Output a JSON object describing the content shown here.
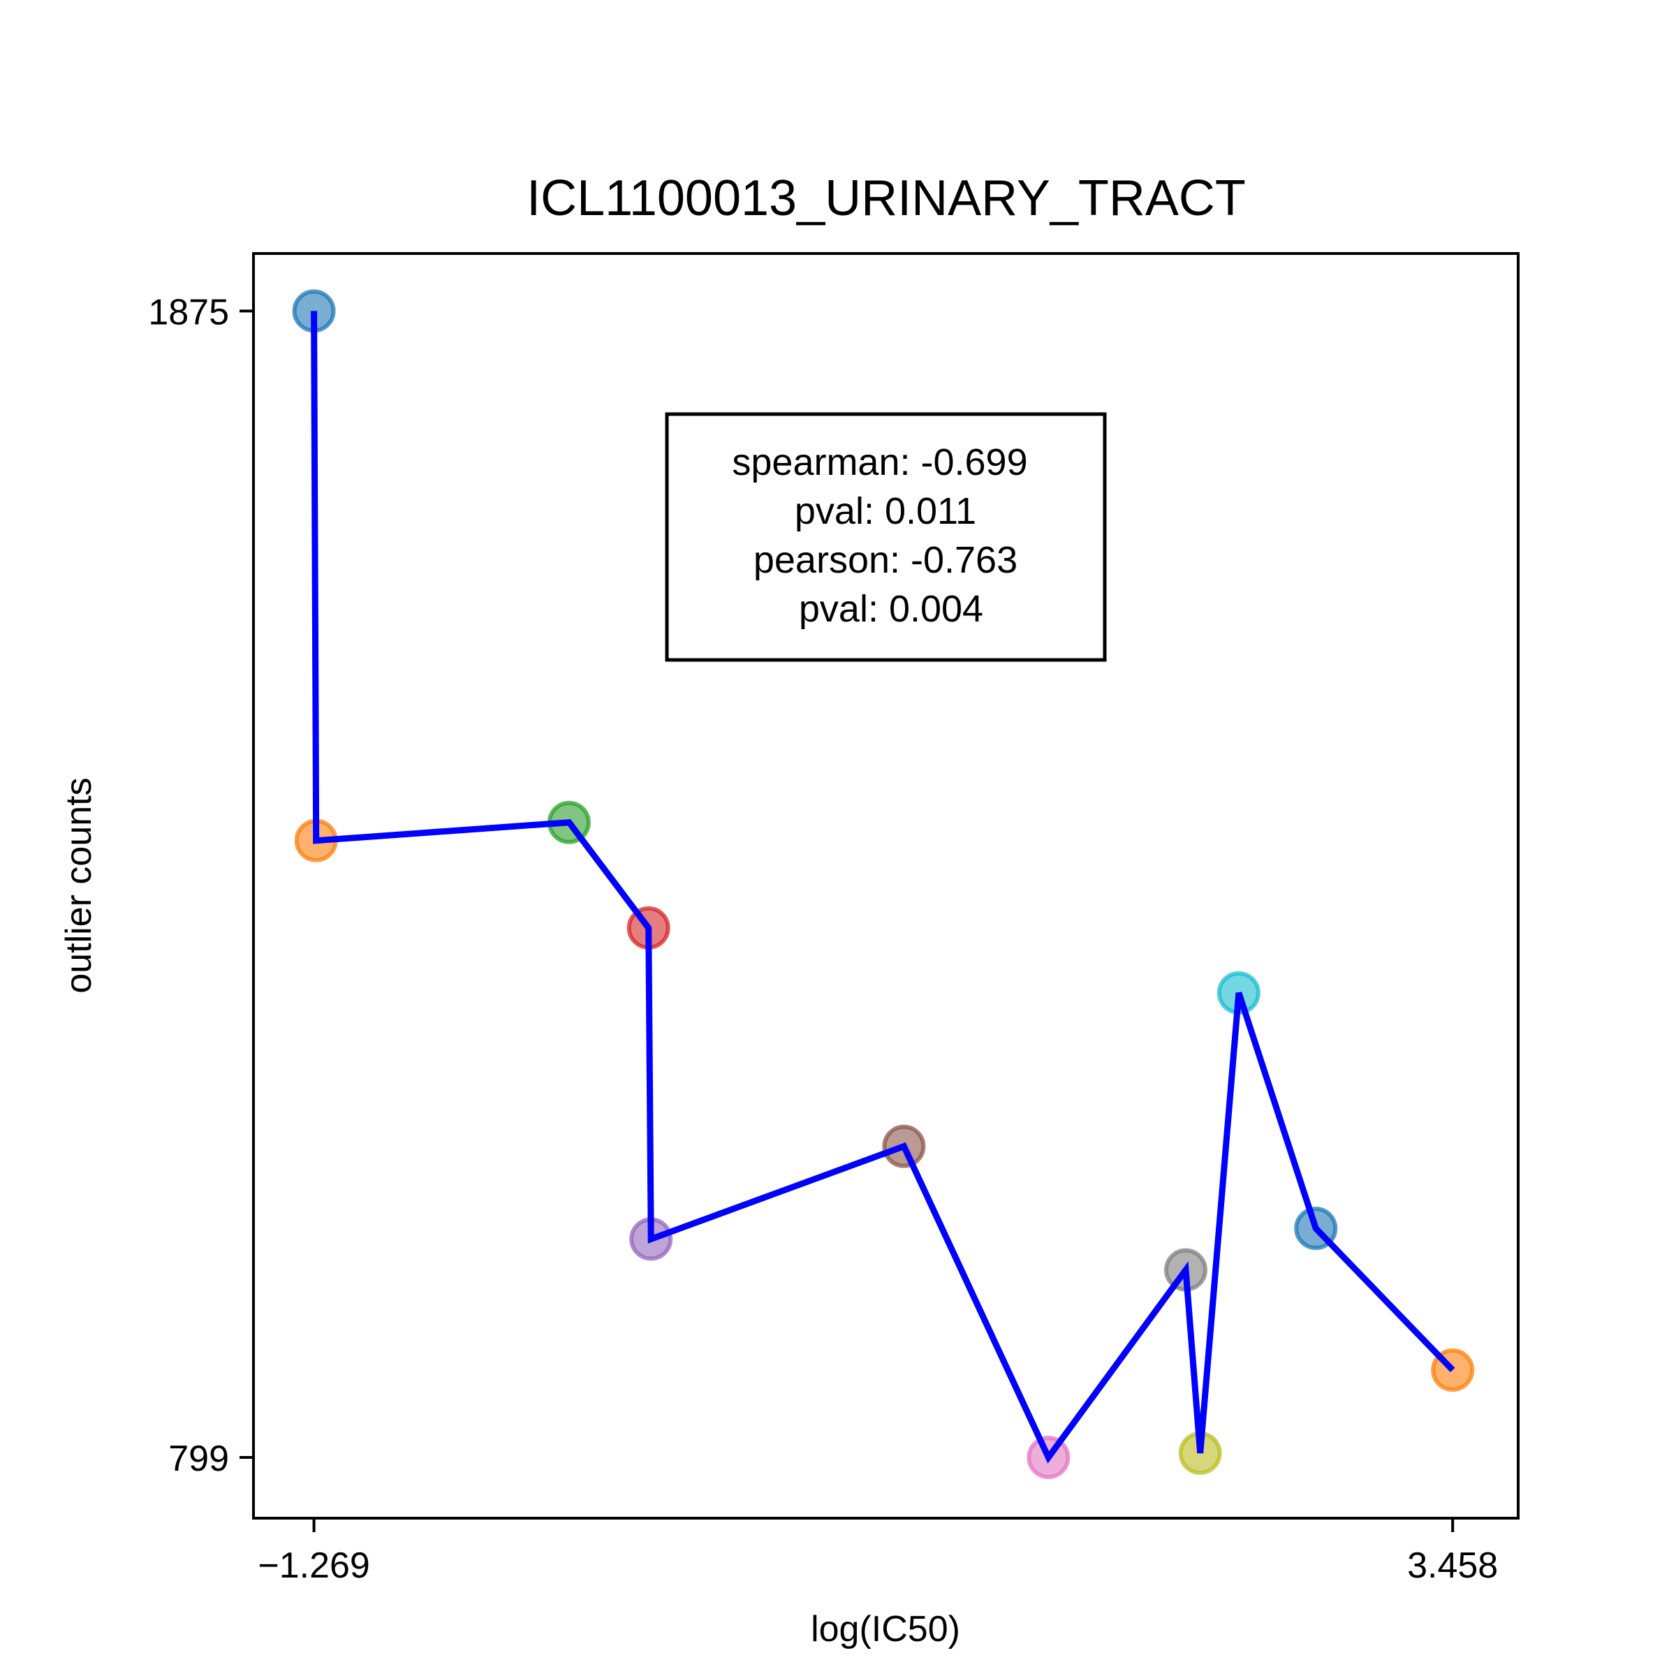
{
  "chart_data": {
    "type": "scatter",
    "title": "ICL1100013_URINARY_TRACT",
    "xlabel": "log(IC50)",
    "ylabel": "outlier counts",
    "xlim": [
      -1.52,
      3.73
    ],
    "ylim": [
      742,
      1929
    ],
    "x_ticks": [
      -1.269,
      3.458
    ],
    "x_tick_labels": [
      "−1.269",
      "3.458"
    ],
    "y_ticks": [
      799,
      1875
    ],
    "y_tick_labels": [
      "799",
      "1875"
    ],
    "grid": false,
    "connect_points": true,
    "line_color": "#0000ff",
    "points": [
      {
        "x": -1.269,
        "y": 1875,
        "color": "#1f77b4"
      },
      {
        "x": -1.26,
        "y": 1378,
        "color": "#ff7f0e"
      },
      {
        "x": -0.21,
        "y": 1395,
        "color": "#2ca02c"
      },
      {
        "x": 0.12,
        "y": 1296,
        "color": "#d62728"
      },
      {
        "x": 0.13,
        "y": 1004,
        "color": "#9467bd"
      },
      {
        "x": 1.18,
        "y": 1091,
        "color": "#8c564b"
      },
      {
        "x": 1.78,
        "y": 799,
        "color": "#e377c2"
      },
      {
        "x": 2.35,
        "y": 975,
        "color": "#7f7f7f"
      },
      {
        "x": 2.41,
        "y": 803,
        "color": "#bcbd22"
      },
      {
        "x": 2.57,
        "y": 1235,
        "color": "#17becf"
      },
      {
        "x": 2.89,
        "y": 1014,
        "color": "#1f77b4"
      },
      {
        "x": 3.458,
        "y": 881,
        "color": "#ff7f0e"
      }
    ],
    "annotation": {
      "lines": [
        "spearman: -0.699",
        "pval: 0.011",
        "pearson: -0.763",
        "pval: 0.004"
      ]
    }
  }
}
